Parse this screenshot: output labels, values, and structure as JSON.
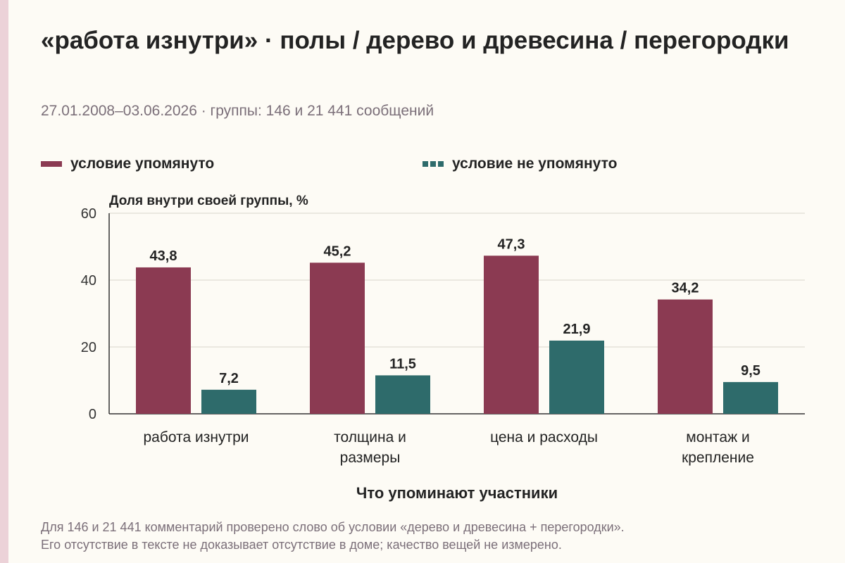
{
  "header": {
    "title": "«работа изнутри» · полы / дерево и древесина / перегородки",
    "subtitle": "27.01.2008–03.06.2026 · группы: 146 и 21 441 сообщений"
  },
  "colors": {
    "series_mentioned": "#8b3a52",
    "series_not_mentioned": "#2e6b6b",
    "grid": "#d9d4cc",
    "axis": "#333333"
  },
  "chart_data": {
    "type": "bar",
    "title": "",
    "xlabel": "Что упоминают участники",
    "ylabel": "Доля внутри своей группы, %",
    "ylim": [
      0,
      60
    ],
    "yticks": [
      0,
      20,
      40,
      60
    ],
    "grid": true,
    "legend_position": "top",
    "categories": [
      [
        "работа изнутри"
      ],
      [
        "толщина и",
        "размеры"
      ],
      [
        "цена и расходы"
      ],
      [
        "монтаж и",
        "крепление"
      ]
    ],
    "series": [
      {
        "name": "условие упомянуто",
        "values": [
          43.8,
          45.2,
          47.3,
          34.2
        ],
        "labels": [
          "43,8",
          "45,2",
          "47,3",
          "34,2"
        ]
      },
      {
        "name": "условие не упомянуто",
        "values": [
          7.2,
          11.5,
          21.9,
          9.5
        ],
        "labels": [
          "7,2",
          "11,5",
          "21,9",
          "9,5"
        ]
      }
    ]
  },
  "footnote": {
    "line1": "Для 146 и 21 441 комментарий проверено слово об условии «дерево и древесина + перегородки».",
    "line2": "Его отсутствие в тексте не доказывает отсутствие в доме; качество вещей не измерено."
  }
}
